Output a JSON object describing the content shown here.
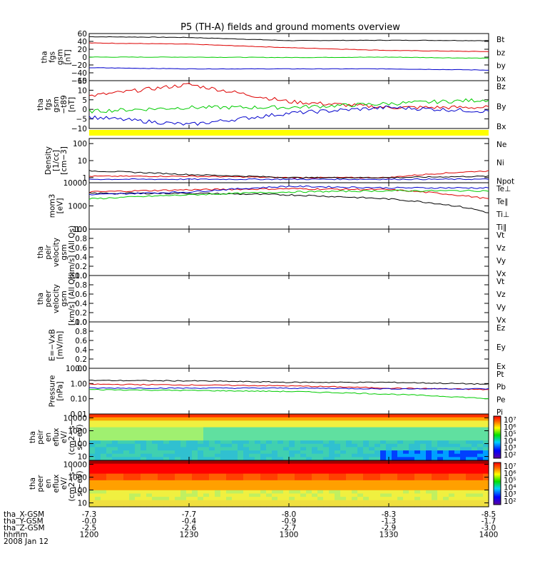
{
  "title": "P5 (TH-A) fields and ground moments overview",
  "time_axis": {
    "tick_times": [
      "1200",
      "1230",
      "1300",
      "1330",
      "1400"
    ],
    "rows": [
      {
        "label": "tha_X-GSM",
        "values": [
          "-7.3",
          "-7.7",
          "-8.0",
          "-8.3",
          "-8.5"
        ]
      },
      {
        "label": "tha_Y-GSM",
        "values": [
          "-0.0",
          "-0.4",
          "-0.9",
          "-1.3",
          "-1.7"
        ]
      },
      {
        "label": "tha_Z-GSM",
        "values": [
          "-2.5",
          "-2.6",
          "-2.7",
          "-2.9",
          "-3.0"
        ]
      },
      {
        "label": "hhmm",
        "values": [
          "1200",
          "1230",
          "1300",
          "1330",
          "1400"
        ]
      }
    ],
    "date": "2008 Jan 12"
  },
  "panels": [
    {
      "ylabel": [
        "tha",
        "fgs",
        "gsm",
        "[nT]"
      ],
      "ticks": [
        "60",
        "40",
        "20",
        "0",
        "−20",
        "−40",
        "−60"
      ],
      "legend": [
        {
          "text": "Bt",
          "color": "#000000"
        },
        {
          "text": "bz",
          "color": "#dd0000"
        },
        {
          "text": "by",
          "color": "#00cc00"
        },
        {
          "text": "bx",
          "color": "#0000cc"
        }
      ]
    },
    {
      "ylabel": [
        "tha",
        "fgs",
        "gsm",
        "−t89",
        "[nT]"
      ],
      "ticks": [
        "15",
        "10",
        "5",
        "0",
        "−5",
        "−10"
      ],
      "legend": [
        {
          "text": "Bz",
          "color": "#dd0000"
        },
        {
          "text": "By",
          "color": "#00cc00"
        },
        {
          "text": "Bx",
          "color": "#0000cc"
        }
      ]
    },
    {
      "ylabel": [
        "Density",
        "[1/cc]",
        "[cm−3]"
      ],
      "ticks": [
        "100",
        "10",
        "1"
      ],
      "legend": [
        {
          "text": "Ne",
          "color": "#dd0000"
        },
        {
          "text": "Ni",
          "color": "#000000"
        },
        {
          "text": "Npot",
          "color": "#0000cc"
        }
      ]
    },
    {
      "ylabel": [
        "mom3",
        "[eV]"
      ],
      "ticks": [
        "10000",
        "1000",
        "100"
      ],
      "legend": [
        {
          "text": "Te⊥",
          "color": "#dd0000"
        },
        {
          "text": "Te∥",
          "color": "#000000"
        },
        {
          "text": "Ti⊥",
          "color": "#0000cc"
        },
        {
          "text": "Ti∥",
          "color": "#00cc00"
        }
      ]
    },
    {
      "ylabel": [
        "tha",
        "peir",
        "velocity",
        "gsm",
        "[km/s] (All Qs)"
      ],
      "ticks": [
        "1.0",
        "0.8",
        "0.6",
        "0.4",
        "0.2",
        "0.0"
      ],
      "legend": [
        {
          "text": "Vt",
          "color": "#000000"
        },
        {
          "text": "Vz",
          "color": "#dd0000"
        },
        {
          "text": "Vy",
          "color": "#00cc00"
        },
        {
          "text": "Vx",
          "color": "#0000cc"
        }
      ]
    },
    {
      "ylabel": [
        "tha",
        "peer",
        "velocity",
        "gsm",
        "[km/s] (All Qs)"
      ],
      "ticks": [
        "1.0",
        "0.8",
        "0.6",
        "0.4",
        "0.2",
        "0.0"
      ],
      "legend": [
        {
          "text": "Vt",
          "color": "#000000"
        },
        {
          "text": "Vz",
          "color": "#dd0000"
        },
        {
          "text": "Vy",
          "color": "#00cc00"
        },
        {
          "text": "Vx",
          "color": "#0000cc"
        }
      ]
    },
    {
      "ylabel": [
        "E=−VxB",
        "[mV/m]"
      ],
      "ticks": [
        "1.0",
        "0.8",
        "0.6",
        "0.4",
        "0.2",
        "0.0"
      ],
      "legend": [
        {
          "text": "Ez",
          "color": "#dd0000"
        },
        {
          "text": "Ey",
          "color": "#00cc00"
        },
        {
          "text": "Ex",
          "color": "#0000cc"
        }
      ]
    },
    {
      "ylabel": [
        "Pressure",
        "[nPa]"
      ],
      "ticks": [
        "10.00",
        "1.00",
        "0.10",
        "0.01"
      ],
      "legend": [
        {
          "text": "Pt",
          "color": "#000000"
        },
        {
          "text": "Pb",
          "color": "#dd0000"
        },
        {
          "text": "Pe",
          "color": "#00cc00"
        },
        {
          "text": "Pi",
          "color": "#0000cc"
        }
      ]
    },
    {
      "ylabel": [
        "tha",
        "peir",
        "en",
        "eflux",
        "eV/",
        "(cm2−s−",
        "sr−eV)"
      ],
      "ticks": [
        "10000",
        "1000",
        "100",
        "10"
      ],
      "colorbar": [
        "10⁷",
        "10⁶",
        "10⁵",
        "10⁴",
        "10³",
        "10²"
      ]
    },
    {
      "ylabel": [
        "tha",
        "peer",
        "en",
        "eflux",
        "eV/",
        "(cm2−s−",
        "sr−eV)"
      ],
      "ticks": [
        "10000",
        "1000",
        "100",
        "10"
      ],
      "colorbar": [
        "10⁷",
        "10⁶",
        "10⁵",
        "10⁴",
        "10³",
        "10²"
      ]
    }
  ],
  "chart_data": [
    {
      "type": "line",
      "title": "P5 (TH-A) fields and ground moments overview",
      "x": [
        "1200",
        "1230",
        "1300",
        "1330",
        "1400"
      ],
      "ylim": [
        -60,
        60
      ],
      "series": [
        {
          "name": "Bt",
          "values": [
            52,
            50,
            42,
            43,
            42
          ]
        },
        {
          "name": "bz",
          "values": [
            36,
            33,
            24,
            17,
            14
          ]
        },
        {
          "name": "by",
          "values": [
            0,
            0,
            -1,
            0,
            -3
          ]
        },
        {
          "name": "bx",
          "values": [
            -27,
            -30,
            -30,
            -30,
            -33
          ]
        }
      ]
    },
    {
      "type": "line",
      "x": [
        "1200",
        "1230",
        "1300",
        "1330",
        "1400"
      ],
      "ylim": [
        -10,
        15
      ],
      "series": [
        {
          "name": "Bz",
          "values": [
            7,
            13,
            4,
            1,
            1
          ]
        },
        {
          "name": "By",
          "values": [
            -1,
            1,
            1,
            3,
            5
          ]
        },
        {
          "name": "Bx",
          "values": [
            -4,
            -8,
            -2,
            1,
            -1
          ]
        }
      ]
    },
    {
      "type": "line",
      "x": [
        "1200",
        "1230",
        "1300",
        "1330",
        "1400"
      ],
      "ylim": [
        0.5,
        200
      ],
      "yscale": "log",
      "series": [
        {
          "name": "Ne",
          "values": [
            1.2,
            1.2,
            1.0,
            1.0,
            2.5
          ]
        },
        {
          "name": "Ni",
          "values": [
            2.5,
            1.5,
            1.0,
            1.0,
            1.2
          ]
        },
        {
          "name": "Npot",
          "values": [
            0.8,
            0.8,
            0.8,
            0.8,
            0.8
          ]
        }
      ]
    },
    {
      "type": "line",
      "x": [
        "1200",
        "1230",
        "1300",
        "1330",
        "1400"
      ],
      "ylim": [
        100,
        10000
      ],
      "yscale": "log",
      "series": [
        {
          "name": "Te⊥",
          "values": [
            4000,
            5000,
            5500,
            5000,
            2000
          ]
        },
        {
          "name": "Te∥",
          "values": [
            3500,
            3500,
            3000,
            2000,
            500
          ]
        },
        {
          "name": "Ti⊥",
          "values": [
            3000,
            4000,
            7000,
            6000,
            6000
          ]
        },
        {
          "name": "Ti∥",
          "values": [
            2000,
            3000,
            4000,
            4500,
            4500
          ]
        }
      ]
    },
    {
      "type": "line",
      "x": [
        "1200",
        "1230",
        "1300",
        "1330",
        "1400"
      ],
      "ylim": [
        0,
        1
      ],
      "series": []
    },
    {
      "type": "line",
      "x": [
        "1200",
        "1230",
        "1300",
        "1330",
        "1400"
      ],
      "ylim": [
        0,
        1
      ],
      "series": []
    },
    {
      "type": "line",
      "x": [
        "1200",
        "1230",
        "1300",
        "1330",
        "1400"
      ],
      "ylim": [
        0,
        1
      ],
      "series": []
    },
    {
      "type": "line",
      "x": [
        "1200",
        "1230",
        "1300",
        "1330",
        "1400"
      ],
      "ylim": [
        0.01,
        10
      ],
      "yscale": "log",
      "series": [
        {
          "name": "Pt",
          "values": [
            1.6,
            1.5,
            1.2,
            1.2,
            0.9
          ]
        },
        {
          "name": "Pb",
          "values": [
            0.9,
            0.8,
            0.7,
            0.5,
            0.4
          ]
        },
        {
          "name": "Pe",
          "values": [
            0.4,
            0.35,
            0.3,
            0.2,
            0.1
          ]
        },
        {
          "name": "Pi",
          "values": [
            0.5,
            0.5,
            0.5,
            0.45,
            0.45
          ]
        }
      ]
    },
    {
      "type": "heatmap",
      "x": [
        "1200",
        "1230",
        "1300",
        "1330",
        "1400"
      ],
      "ylim": [
        5,
        20000
      ],
      "yscale": "log",
      "colorbar_range": [
        100,
        10000000
      ]
    },
    {
      "type": "heatmap",
      "x": [
        "1200",
        "1230",
        "1300",
        "1330",
        "1400"
      ],
      "ylim": [
        5,
        20000
      ],
      "yscale": "log",
      "colorbar_range": [
        100,
        10000000
      ]
    }
  ]
}
